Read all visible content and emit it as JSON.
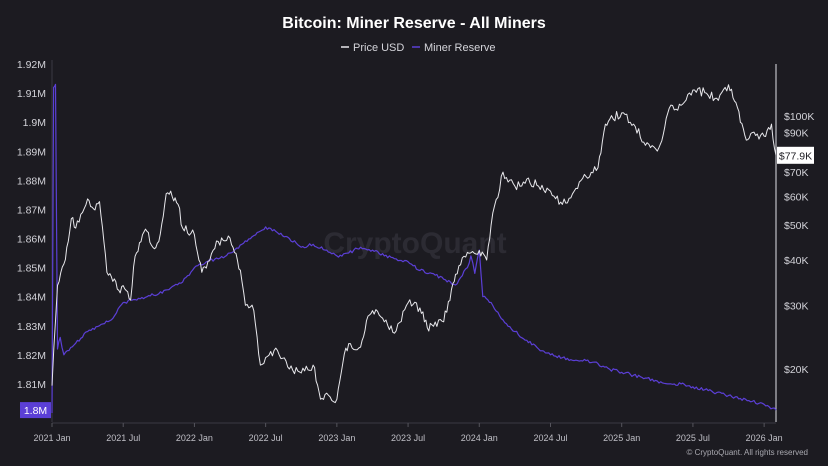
{
  "chart_data": {
    "type": "line",
    "title": "Bitcoin: Miner Reserve - All Miners",
    "watermark": "CryptoQuant",
    "credit": "© CryptoQuant. All rights reserved",
    "legend": {
      "placement": "top-center",
      "items": [
        "Price USD",
        "Miner Reserve"
      ]
    },
    "x_ticks": [
      "2021 Jan",
      "2021 Jul",
      "2022 Jan",
      "2022 Jul",
      "2023 Jan",
      "2023 Jul",
      "2024 Jan",
      "2024 Jul",
      "2025 Jan",
      "2025 Jul",
      "2026 Jan"
    ],
    "x_range": [
      "2021-01",
      "2026-02"
    ],
    "left_axis": {
      "series": "Miner Reserve",
      "ylim": [
        1.8,
        1.92
      ],
      "ticks": [
        "1.8M",
        "1.81M",
        "1.82M",
        "1.83M",
        "1.84M",
        "1.85M",
        "1.86M",
        "1.87M",
        "1.88M",
        "1.89M",
        "1.9M",
        "1.91M",
        "1.92M"
      ],
      "tick_values": [
        1.8,
        1.81,
        1.82,
        1.83,
        1.84,
        1.85,
        1.86,
        1.87,
        1.88,
        1.89,
        1.9,
        1.91,
        1.92
      ],
      "current_label": "1.8M",
      "current_value": 1.801
    },
    "right_axis": {
      "series": "Price USD",
      "scale": "log",
      "ticks": [
        "$20K",
        "$30K",
        "$40K",
        "$50K",
        "$60K",
        "$70K",
        "$90K",
        "$100K"
      ],
      "tick_values": [
        20000,
        30000,
        40000,
        50000,
        60000,
        70000,
        90000,
        100000
      ],
      "current_label": "$77.9K",
      "current_value": 77900
    },
    "grid": false,
    "series": [
      {
        "name": "Price USD",
        "color": "#e8e8ec",
        "axis": "right",
        "x": [
          "2021-01",
          "2021-01-15",
          "2021-02",
          "2021-02-20",
          "2021-03",
          "2021-04",
          "2021-04-20",
          "2021-05",
          "2021-05-20",
          "2021-06",
          "2021-06-20",
          "2021-07",
          "2021-07-20",
          "2021-08",
          "2021-08-20",
          "2021-09",
          "2021-09-20",
          "2021-10",
          "2021-10-20",
          "2021-11",
          "2021-11-20",
          "2021-12",
          "2022-01",
          "2022-01-20",
          "2022-02",
          "2022-03",
          "2022-04",
          "2022-04-20",
          "2022-05",
          "2022-05-10",
          "2022-06",
          "2022-06-18",
          "2022-07",
          "2022-08",
          "2022-09",
          "2022-10",
          "2022-11",
          "2022-11-20",
          "2022-12",
          "2023-01",
          "2023-01-20",
          "2023-02",
          "2023-03",
          "2023-03-20",
          "2023-04",
          "2023-05",
          "2023-06",
          "2023-07",
          "2023-08",
          "2023-08-20",
          "2023-09",
          "2023-10",
          "2023-10-25",
          "2023-11",
          "2023-12",
          "2024-01",
          "2024-01-20",
          "2024-02",
          "2024-03",
          "2024-04",
          "2024-05",
          "2024-06",
          "2024-07",
          "2024-08",
          "2024-09",
          "2024-10",
          "2024-11",
          "2024-11-20",
          "2024-12",
          "2025-01",
          "2025-02",
          "2025-03",
          "2025-04",
          "2025-04-20",
          "2025-05",
          "2025-06",
          "2025-07",
          "2025-08",
          "2025-09",
          "2025-10",
          "2025-10-20",
          "2025-11",
          "2025-11-20",
          "2025-12",
          "2026-01",
          "2026-01-20",
          "2026-02"
        ],
        "values": [
          18000,
          34000,
          39000,
          52000,
          49000,
          59000,
          55000,
          58000,
          37000,
          36000,
          33000,
          34000,
          31000,
          41000,
          47000,
          48000,
          43000,
          45000,
          61000,
          62000,
          57000,
          49000,
          47000,
          37000,
          38000,
          45000,
          46000,
          40000,
          35000,
          30000,
          29000,
          20500,
          21500,
          22500,
          20000,
          19500,
          20500,
          16500,
          17000,
          16500,
          22000,
          23500,
          23000,
          28000,
          29000,
          27000,
          25500,
          30500,
          29500,
          26000,
          26500,
          27000,
          34500,
          36500,
          42000,
          42500,
          40000,
          50000,
          70000,
          64000,
          67000,
          64000,
          62000,
          57000,
          62000,
          68000,
          72000,
          95000,
          98000,
          102000,
          95000,
          83000,
          80000,
          93000,
          105000,
          107000,
          118000,
          116000,
          112000,
          122000,
          109000,
          96000,
          86000,
          90000,
          88000,
          95000,
          77900
        ]
      },
      {
        "name": "Miner Reserve",
        "color": "#5b3fd6",
        "axis": "left",
        "x": [
          "2021-01",
          "2021-01-05",
          "2021-01-10",
          "2021-01-15",
          "2021-01-22",
          "2021-02",
          "2021-03",
          "2021-04",
          "2021-05",
          "2021-06",
          "2021-07",
          "2021-08",
          "2021-09",
          "2021-10",
          "2021-11",
          "2021-12",
          "2022-01",
          "2022-02",
          "2022-03",
          "2022-04",
          "2022-05",
          "2022-06",
          "2022-07",
          "2022-08",
          "2022-09",
          "2022-10",
          "2022-11",
          "2022-12",
          "2023-01",
          "2023-02",
          "2023-03",
          "2023-04",
          "2023-05",
          "2023-06",
          "2023-07",
          "2023-08",
          "2023-09",
          "2023-10",
          "2023-11",
          "2023-12",
          "2023-12-10",
          "2023-12-20",
          "2024-01",
          "2024-01-10",
          "2024-02",
          "2024-03",
          "2024-04",
          "2024-05",
          "2024-06",
          "2024-07",
          "2024-08",
          "2024-09",
          "2024-10",
          "2024-11",
          "2024-12",
          "2025-01",
          "2025-02",
          "2025-03",
          "2025-04",
          "2025-05",
          "2025-06",
          "2025-07",
          "2025-08",
          "2025-09",
          "2025-10",
          "2025-11",
          "2025-12",
          "2026-01",
          "2026-02"
        ],
        "values": [
          1.8,
          1.912,
          1.913,
          1.822,
          1.826,
          1.82,
          1.824,
          1.828,
          1.83,
          1.832,
          1.838,
          1.839,
          1.84,
          1.841,
          1.843,
          1.845,
          1.85,
          1.852,
          1.853,
          1.855,
          1.858,
          1.861,
          1.864,
          1.862,
          1.86,
          1.857,
          1.858,
          1.856,
          1.854,
          1.855,
          1.857,
          1.856,
          1.854,
          1.853,
          1.852,
          1.849,
          1.848,
          1.846,
          1.844,
          1.85,
          1.854,
          1.848,
          1.856,
          1.84,
          1.838,
          1.832,
          1.828,
          1.825,
          1.822,
          1.82,
          1.819,
          1.818,
          1.818,
          1.817,
          1.815,
          1.814,
          1.813,
          1.812,
          1.811,
          1.81,
          1.81,
          1.809,
          1.808,
          1.807,
          1.806,
          1.805,
          1.804,
          1.803,
          1.801
        ]
      }
    ]
  }
}
